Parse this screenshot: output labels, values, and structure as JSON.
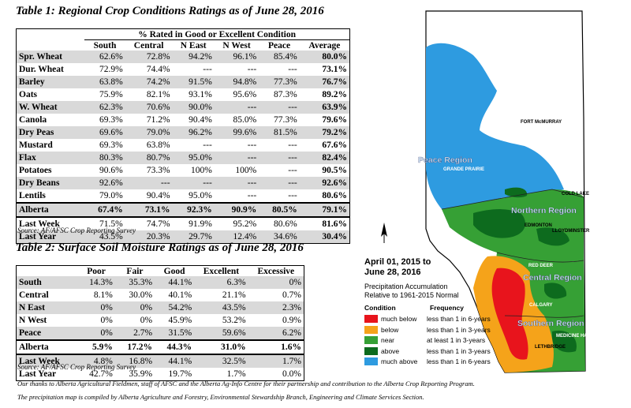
{
  "table1": {
    "title": "Table 1: Regional Crop Conditions Ratings as of June 28, 2016",
    "super_header": "% Rated in Good or Excellent Condition",
    "columns": [
      "South",
      "Central",
      "N East",
      "N West",
      "Peace",
      "Average"
    ],
    "rows": [
      {
        "name": "Spr. Wheat",
        "values": [
          "62.6%",
          "72.8%",
          "94.2%",
          "96.1%",
          "85.4%",
          "80.0%"
        ]
      },
      {
        "name": "Dur. Wheat",
        "values": [
          "72.9%",
          "74.4%",
          "---",
          "---",
          "---",
          "73.1%"
        ]
      },
      {
        "name": "Barley",
        "values": [
          "63.8%",
          "74.2%",
          "91.5%",
          "94.8%",
          "77.3%",
          "76.7%"
        ]
      },
      {
        "name": "Oats",
        "values": [
          "75.9%",
          "82.1%",
          "93.1%",
          "95.6%",
          "87.3%",
          "89.2%"
        ]
      },
      {
        "name": "W. Wheat",
        "values": [
          "62.3%",
          "70.6%",
          "90.0%",
          "---",
          "---",
          "63.9%"
        ]
      },
      {
        "name": "Canola",
        "values": [
          "69.3%",
          "71.2%",
          "90.4%",
          "85.0%",
          "77.3%",
          "79.6%"
        ]
      },
      {
        "name": "Dry Peas",
        "values": [
          "69.6%",
          "79.0%",
          "96.2%",
          "99.6%",
          "81.5%",
          "79.2%"
        ]
      },
      {
        "name": "Mustard",
        "values": [
          "69.3%",
          "63.8%",
          "---",
          "---",
          "---",
          "67.6%"
        ]
      },
      {
        "name": "Flax",
        "values": [
          "80.3%",
          "80.7%",
          "95.0%",
          "---",
          "---",
          "82.4%"
        ]
      },
      {
        "name": "Potatoes",
        "values": [
          "90.6%",
          "73.3%",
          "100%",
          "100%",
          "---",
          "90.5%"
        ]
      },
      {
        "name": "Dry Beans",
        "values": [
          "92.6%",
          "---",
          "---",
          "---",
          "---",
          "92.6%"
        ]
      },
      {
        "name": "Lentils",
        "values": [
          "79.0%",
          "90.4%",
          "95.0%",
          "---",
          "---",
          "80.6%"
        ]
      },
      {
        "name": "Alberta",
        "values": [
          "67.4%",
          "73.1%",
          "92.3%",
          "90.9%",
          "80.5%",
          "79.1%"
        ]
      },
      {
        "name": "Last Week",
        "values": [
          "71.5%",
          "74.7%",
          "91.9%",
          "95.2%",
          "80.6%",
          "81.6%"
        ]
      },
      {
        "name": "Last Year",
        "values": [
          "43.5%",
          "20.3%",
          "29.7%",
          "12.4%",
          "34.6%",
          "30.4%"
        ]
      }
    ],
    "source": "Source: AF/AFSC Crop Reporting Survey"
  },
  "table2": {
    "title": "Table 2: Surface Soil Moisture Ratings as of June 28, 2016",
    "columns": [
      "Poor",
      "Fair",
      "Good",
      "Excellent",
      "Excessive"
    ],
    "rows": [
      {
        "name": "South",
        "values": [
          "14.3%",
          "35.3%",
          "44.1%",
          "6.3%",
          "0%"
        ]
      },
      {
        "name": "Central",
        "values": [
          "8.1%",
          "30.0%",
          "40.1%",
          "21.1%",
          "0.7%"
        ]
      },
      {
        "name": "N East",
        "values": [
          "0%",
          "0%",
          "54.2%",
          "43.5%",
          "2.3%"
        ]
      },
      {
        "name": "N West",
        "values": [
          "0%",
          "0%",
          "45.9%",
          "53.2%",
          "0.9%"
        ]
      },
      {
        "name": "Peace",
        "values": [
          "0%",
          "2.7%",
          "31.5%",
          "59.6%",
          "6.2%"
        ]
      },
      {
        "name": "Alberta",
        "values": [
          "5.9%",
          "17.2%",
          "44.3%",
          "31.0%",
          "1.6%"
        ]
      },
      {
        "name": "Last Week",
        "values": [
          "4.8%",
          "16.8%",
          "44.1%",
          "32.5%",
          "1.7%"
        ]
      },
      {
        "name": "Last Year",
        "values": [
          "42.7%",
          "35.9%",
          "19.7%",
          "1.7%",
          "0.0%"
        ]
      }
    ],
    "source": "Source: AF/AFSC Crop Reporting Survey"
  },
  "footer": {
    "line1": "Our thanks to Alberta Agricultural Fieldmen, staff of AFSC and the Alberta Ag-Info Centre for their partnership and contribution to the Alberta Crop Reporting Program.",
    "line2": "The precipitation map is compiled by Alberta Agriculture and Forestry, Environmental Stewardship Branch, Engineering and Climate Services Section."
  },
  "map": {
    "date_line1": "April 01, 2015 to",
    "date_line2": "June 28, 2016",
    "sub_line1": "Precipitation Accumulation",
    "sub_line2": "Relative to 1961-2015 Normal",
    "header_condition": "Condition",
    "header_frequency": "Frequency",
    "legend": [
      {
        "condition": "much below",
        "frequency": "less than 1 in 6-years",
        "color": "#e8141c"
      },
      {
        "condition": "below",
        "frequency": "less than 1 in 3-years",
        "color": "#f5a31a"
      },
      {
        "condition": "near",
        "frequency": "at least 1 in 3-years",
        "color": "#36a035"
      },
      {
        "condition": "above",
        "frequency": "less than 1 in 3-years",
        "color": "#0d6b1e"
      },
      {
        "condition": "much above",
        "frequency": "less than 1 in 6-years",
        "color": "#2e9be0"
      }
    ],
    "regions": {
      "peace": "Peace Region",
      "northern": "Northern Region",
      "central": "Central Region",
      "southern": "Southern Region"
    },
    "cities": {
      "fort_mcmurray": "FORT McMURRAY",
      "grande_prairie": "GRANDE PRAIRIE",
      "cold_lake": "COLD LAKE",
      "edmonton": "EDMONTON",
      "lloydminster": "LLOYDMINSTER",
      "red_deer": "RED DEER",
      "calgary": "CALGARY",
      "medicine_hat": "MEDICINE HAT",
      "lethbridge": "LETHBRIDGE"
    },
    "north_arrow": "north-arrow-icon"
  }
}
